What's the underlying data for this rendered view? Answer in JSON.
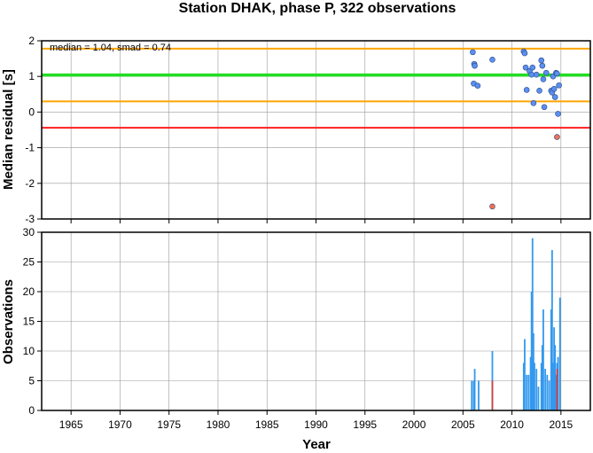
{
  "title": "Station DHAK, phase P, 322 observations",
  "chart_data": [
    {
      "type": "scatter",
      "panel": "residuals",
      "ylabel": "Median residual [s]",
      "xlim": [
        1962,
        2018
      ],
      "ylim": [
        -3,
        2
      ],
      "x_ticks": [
        1965,
        1970,
        1975,
        1980,
        1985,
        1990,
        1995,
        2000,
        2005,
        2010,
        2015
      ],
      "y_ticks": [
        2,
        1,
        0,
        -1,
        -2,
        -3
      ],
      "grid": true,
      "annotation": "median = 1.04, smad = 0.74",
      "reference_lines": [
        {
          "name": "median",
          "y": 1.04,
          "color": "#22dd22"
        },
        {
          "name": "median + smad",
          "y": 1.78,
          "color": "#ffa500"
        },
        {
          "name": "median - smad",
          "y": 0.3,
          "color": "#ffa500"
        },
        {
          "name": "lower limit",
          "y": -0.44,
          "color": "#ff1f1f"
        }
      ],
      "series": [
        {
          "color": "#5b8ff0",
          "points": [
            {
              "x": 2006.0,
              "y": 1.68
            },
            {
              "x": 2006.1,
              "y": 0.8
            },
            {
              "x": 2006.15,
              "y": 1.35
            },
            {
              "x": 2006.2,
              "y": 1.3
            },
            {
              "x": 2006.5,
              "y": 0.74
            },
            {
              "x": 2008.0,
              "y": 1.47
            },
            {
              "x": 2011.2,
              "y": 1.7
            },
            {
              "x": 2011.3,
              "y": 1.65
            },
            {
              "x": 2011.4,
              "y": 1.25
            },
            {
              "x": 2011.5,
              "y": 0.62
            },
            {
              "x": 2011.8,
              "y": 1.15
            },
            {
              "x": 2012.0,
              "y": 1.05
            },
            {
              "x": 2012.1,
              "y": 1.25
            },
            {
              "x": 2012.2,
              "y": 0.25
            },
            {
              "x": 2012.5,
              "y": 1.05
            },
            {
              "x": 2012.8,
              "y": 0.6
            },
            {
              "x": 2013.0,
              "y": 1.45
            },
            {
              "x": 2013.1,
              "y": 1.3
            },
            {
              "x": 2013.2,
              "y": 0.92
            },
            {
              "x": 2013.3,
              "y": 0.14
            },
            {
              "x": 2013.5,
              "y": 1.1
            },
            {
              "x": 2014.0,
              "y": 0.6
            },
            {
              "x": 2014.1,
              "y": 0.55
            },
            {
              "x": 2014.2,
              "y": 1.0
            },
            {
              "x": 2014.3,
              "y": 0.65
            },
            {
              "x": 2014.4,
              "y": 0.42
            },
            {
              "x": 2014.5,
              "y": 1.1
            },
            {
              "x": 2014.6,
              "y": 1.08
            },
            {
              "x": 2014.8,
              "y": 0.75
            },
            {
              "x": 2014.7,
              "y": -0.05
            }
          ]
        },
        {
          "color": "#f07050",
          "points": [
            {
              "x": 2008.0,
              "y": -2.65
            },
            {
              "x": 2014.6,
              "y": -0.7
            }
          ]
        }
      ]
    },
    {
      "type": "bar",
      "panel": "observations",
      "xlabel": "Year",
      "ylabel": "Observations",
      "xlim": [
        1962,
        2018
      ],
      "ylim": [
        0,
        30
      ],
      "x_ticks": [
        1965,
        1970,
        1975,
        1980,
        1985,
        1990,
        1995,
        2000,
        2005,
        2010,
        2015
      ],
      "y_ticks": [
        0,
        5,
        10,
        15,
        20,
        25,
        30
      ],
      "grid": true,
      "series": [
        {
          "color": "#3399ee",
          "bars": [
            {
              "x": 2005.9,
              "y": 5
            },
            {
              "x": 2006.1,
              "y": 5
            },
            {
              "x": 2006.2,
              "y": 7
            },
            {
              "x": 2006.6,
              "y": 5
            },
            {
              "x": 2008.0,
              "y": 10
            },
            {
              "x": 2011.2,
              "y": 8
            },
            {
              "x": 2011.3,
              "y": 12
            },
            {
              "x": 2011.5,
              "y": 6
            },
            {
              "x": 2011.7,
              "y": 6
            },
            {
              "x": 2011.9,
              "y": 9
            },
            {
              "x": 2012.0,
              "y": 20
            },
            {
              "x": 2012.1,
              "y": 29
            },
            {
              "x": 2012.2,
              "y": 13
            },
            {
              "x": 2012.3,
              "y": 8
            },
            {
              "x": 2012.5,
              "y": 7
            },
            {
              "x": 2012.7,
              "y": 4
            },
            {
              "x": 2013.0,
              "y": 8
            },
            {
              "x": 2013.1,
              "y": 11
            },
            {
              "x": 2013.2,
              "y": 17
            },
            {
              "x": 2013.4,
              "y": 7
            },
            {
              "x": 2013.6,
              "y": 6
            },
            {
              "x": 2013.8,
              "y": 5
            },
            {
              "x": 2014.0,
              "y": 17
            },
            {
              "x": 2014.1,
              "y": 27
            },
            {
              "x": 2014.2,
              "y": 8
            },
            {
              "x": 2014.3,
              "y": 14
            },
            {
              "x": 2014.4,
              "y": 11
            },
            {
              "x": 2014.5,
              "y": 6
            },
            {
              "x": 2014.6,
              "y": 8
            },
            {
              "x": 2014.7,
              "y": 9
            },
            {
              "x": 2014.9,
              "y": 19
            }
          ]
        },
        {
          "color": "#d24040",
          "bars": [
            {
              "x": 2008.0,
              "y": 5
            },
            {
              "x": 2014.6,
              "y": 7
            }
          ]
        }
      ]
    }
  ]
}
